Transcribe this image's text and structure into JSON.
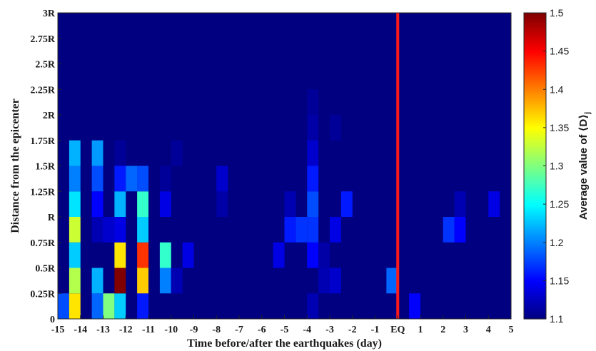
{
  "chart_data": {
    "type": "heatmap",
    "title": "",
    "xlabel": "Time before/after the earthquakes (day)",
    "ylabel": "Distance from the epicenter",
    "colorbar_label": "Average value of ⟨D⟩",
    "colorbar_label_subscript": "j",
    "colormap": "jet",
    "clim": [
      1.1,
      1.5
    ],
    "colorbar_ticks": [
      "1.1",
      "1.15",
      "1.2",
      "1.25",
      "1.3",
      "1.35",
      "1.4",
      "1.45",
      "1.5"
    ],
    "x_tick_labels": [
      "-15",
      "-14",
      "-13",
      "-12",
      "-11",
      "-10",
      "-9",
      "-8",
      "-7",
      "-6",
      "-5",
      "-4",
      "-3",
      "-2",
      "-1",
      "EQ",
      "1",
      "2",
      "3",
      "4",
      "5"
    ],
    "y_tick_labels": [
      "0",
      "0.25R",
      "0.5R",
      "0.75R",
      "R",
      "1.25R",
      "1.5R",
      "1.75R",
      "2R",
      "2.25R",
      "2.5R",
      "2.75R",
      "3R"
    ],
    "x_range": [
      -15,
      5
    ],
    "y_range": [
      0,
      3
    ],
    "x_bin_width_days": 0.5,
    "y_bin_width": 0.25,
    "eq_line_x": 0,
    "eq_line_color": "#ff1a1a",
    "background_value": 1.1,
    "cells": [
      [
        -15,
        0,
        1.18
      ],
      [
        -14.5,
        0,
        1.36
      ],
      [
        -14.5,
        0.25,
        1.32
      ],
      [
        -14.5,
        0.5,
        1.23
      ],
      [
        -14.5,
        0.75,
        1.33
      ],
      [
        -14.5,
        1,
        1.24
      ],
      [
        -14.5,
        1.25,
        1.2
      ],
      [
        -14.5,
        1.5,
        1.22
      ],
      [
        -13.5,
        0,
        1.19
      ],
      [
        -13.5,
        0.25,
        1.22
      ],
      [
        -13.5,
        0.75,
        1.12
      ],
      [
        -13.5,
        1,
        1.15
      ],
      [
        -13.5,
        1.25,
        1.18
      ],
      [
        -13.5,
        1.5,
        1.21
      ],
      [
        -13,
        0,
        1.3
      ],
      [
        -13,
        0.75,
        1.13
      ],
      [
        -12.5,
        0,
        1.23
      ],
      [
        -12.5,
        0.25,
        1.5
      ],
      [
        -12.5,
        0.5,
        1.36
      ],
      [
        -12.5,
        0.75,
        1.14
      ],
      [
        -12.5,
        1,
        1.22
      ],
      [
        -12.5,
        1.25,
        1.16
      ],
      [
        -12.5,
        1.5,
        1.11
      ],
      [
        -12,
        1.25,
        1.19
      ],
      [
        -11.5,
        0,
        1.16
      ],
      [
        -11.5,
        0.25,
        1.37
      ],
      [
        -11.5,
        0.5,
        1.43
      ],
      [
        -11.5,
        0.75,
        1.23
      ],
      [
        -11.5,
        1,
        1.27
      ],
      [
        -11.5,
        1.25,
        1.18
      ],
      [
        -10.5,
        0.25,
        1.2
      ],
      [
        -10.5,
        0.5,
        1.27
      ],
      [
        -10.5,
        1,
        1.14
      ],
      [
        -10.5,
        1.25,
        1.11
      ],
      [
        -10,
        0.25,
        1.12
      ],
      [
        -10,
        1.5,
        1.11
      ],
      [
        -9.5,
        0.5,
        1.14
      ],
      [
        -8,
        1,
        1.115
      ],
      [
        -8,
        1.25,
        1.13
      ],
      [
        -5.5,
        0.5,
        1.14
      ],
      [
        -5,
        0.75,
        1.16
      ],
      [
        -5,
        1,
        1.12
      ],
      [
        -4.5,
        0.75,
        1.17
      ],
      [
        -4,
        0,
        1.12
      ],
      [
        -4,
        0.5,
        1.15
      ],
      [
        -4,
        0.75,
        1.17
      ],
      [
        -4,
        1,
        1.18
      ],
      [
        -4,
        1.25,
        1.16
      ],
      [
        -4,
        1.5,
        1.13
      ],
      [
        -4,
        1.75,
        1.115
      ],
      [
        -4,
        2,
        1.11
      ],
      [
        -3.5,
        0.25,
        1.12
      ],
      [
        -3.5,
        0.5,
        1.115
      ],
      [
        -3,
        0.25,
        1.13
      ],
      [
        -3,
        0.75,
        1.14
      ],
      [
        -3,
        1.75,
        1.11
      ],
      [
        -2.5,
        1,
        1.16
      ],
      [
        -0.5,
        0.25,
        1.19
      ],
      [
        0.5,
        0,
        1.15
      ],
      [
        2,
        0.75,
        1.17
      ],
      [
        2.5,
        0.75,
        1.15
      ],
      [
        2.5,
        1,
        1.12
      ],
      [
        4,
        1,
        1.14
      ]
    ]
  }
}
